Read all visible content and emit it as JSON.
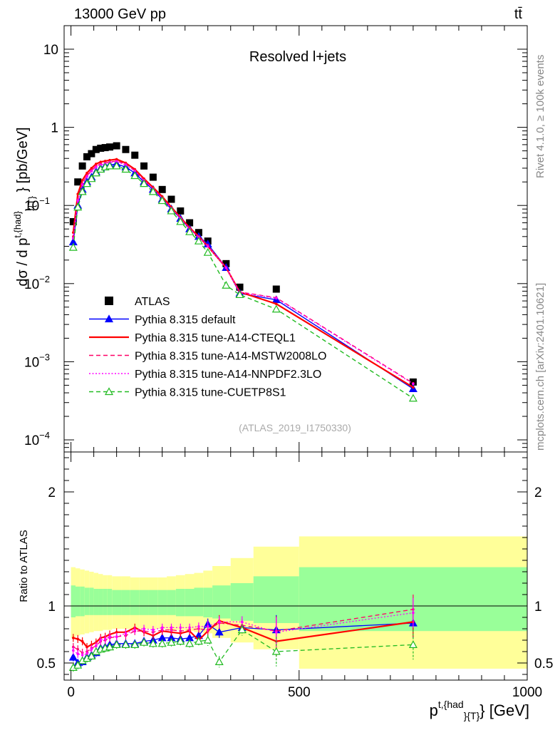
{
  "header": {
    "left": "13000 GeV pp",
    "right": "tt̄",
    "side_top": "Rivet 4.1.0, ≥ 100k events",
    "side_bottom": "mcplots.cern.ch [arXiv:2401.10621]"
  },
  "chart_data": [
    {
      "type": "scatter",
      "panel": "main",
      "title": "Resolved l+jets",
      "watermark": "(ATLAS_2019_I1750330)",
      "xlabel": "p^{t,{had}}_{T} [GeV]",
      "ylabel": "dσ / d p^{t,{had}}_{T} [pb/GeV]",
      "yscale": "log",
      "xlim": [
        -15,
        1000
      ],
      "ylim": [
        7e-05,
        20
      ],
      "y_ticks": [
        "10",
        "1",
        "10^-1",
        "10^-2",
        "10^-3",
        "10^-4"
      ],
      "legend_position": "lower-left",
      "x": [
        5,
        15,
        25,
        35,
        45,
        55,
        65,
        75,
        85,
        100,
        120,
        140,
        160,
        180,
        200,
        220,
        240,
        260,
        280,
        300,
        340,
        370,
        450,
        750
      ],
      "series": [
        {
          "name": "ATLAS",
          "color": "#000000",
          "style": "square",
          "values": [
            0.062,
            0.2,
            0.32,
            0.42,
            0.46,
            0.52,
            0.54,
            0.55,
            0.56,
            0.58,
            0.52,
            0.44,
            0.32,
            0.23,
            0.16,
            0.12,
            0.085,
            0.06,
            0.045,
            0.035,
            0.018,
            0.009,
            0.0085,
            0.00055
          ]
        },
        {
          "name": "Pythia 8.315 default",
          "color": "#0000ff",
          "style": "solid-triangle",
          "values": [
            0.034,
            0.1,
            0.16,
            0.2,
            0.23,
            0.27,
            0.3,
            0.32,
            0.33,
            0.34,
            0.31,
            0.26,
            0.2,
            0.16,
            0.12,
            0.09,
            0.068,
            0.05,
            0.04,
            0.032,
            0.016,
            0.0075,
            0.0062,
            0.00045
          ]
        },
        {
          "name": "Pythia 8.315 tune-A14-CTEQL1",
          "color": "#ff0000",
          "style": "solid",
          "values": [
            0.045,
            0.14,
            0.21,
            0.26,
            0.3,
            0.34,
            0.36,
            0.37,
            0.38,
            0.39,
            0.35,
            0.29,
            0.22,
            0.17,
            0.13,
            0.095,
            0.07,
            0.052,
            0.04,
            0.03,
            0.016,
            0.0078,
            0.0055,
            0.00047
          ]
        },
        {
          "name": "Pythia 8.315 tune-A14-MSTW2008LO",
          "color": "#ff0066",
          "style": "dashed",
          "values": [
            0.04,
            0.12,
            0.19,
            0.24,
            0.28,
            0.32,
            0.34,
            0.35,
            0.36,
            0.37,
            0.34,
            0.28,
            0.21,
            0.165,
            0.125,
            0.093,
            0.069,
            0.051,
            0.04,
            0.031,
            0.016,
            0.0078,
            0.0066,
            0.00053
          ]
        },
        {
          "name": "Pythia 8.315 tune-A14-NNPDF2.3LO",
          "color": "#ff00ff",
          "style": "dotted",
          "values": [
            0.038,
            0.115,
            0.185,
            0.235,
            0.275,
            0.31,
            0.33,
            0.345,
            0.355,
            0.365,
            0.33,
            0.275,
            0.21,
            0.163,
            0.123,
            0.092,
            0.068,
            0.05,
            0.039,
            0.03,
            0.016,
            0.0077,
            0.0065,
            0.00052
          ]
        },
        {
          "name": "Pythia 8.315 tune-CUETP8S1",
          "color": "#22bb22",
          "style": "dashed-open-triangle",
          "values": [
            0.029,
            0.095,
            0.15,
            0.19,
            0.22,
            0.26,
            0.29,
            0.31,
            0.32,
            0.32,
            0.29,
            0.24,
            0.19,
            0.15,
            0.115,
            0.085,
            0.062,
            0.046,
            0.035,
            0.025,
            0.0095,
            0.0072,
            0.0047,
            0.00034
          ]
        }
      ]
    },
    {
      "type": "line",
      "panel": "ratio",
      "ylabel": "Ratio to ATLAS",
      "xlabel": "p^{t,{had}}_{T} [GeV]",
      "xlim": [
        -15,
        1000
      ],
      "ylim": [
        0.35,
        2.35
      ],
      "y_ticks": [
        "0.5",
        "1",
        "2"
      ],
      "x_ticks": [
        "0",
        "500",
        "1000"
      ],
      "bands": {
        "edges": [
          0,
          10,
          20,
          30,
          40,
          50,
          60,
          70,
          80,
          90,
          110,
          130,
          150,
          170,
          190,
          210,
          230,
          250,
          270,
          290,
          310,
          350,
          400,
          500,
          1000
        ],
        "inner_color": "#99ff99",
        "outer_color": "#ffff99",
        "inner": [
          [
            0.9,
            1.18
          ],
          [
            0.91,
            1.17
          ],
          [
            0.91,
            1.17
          ],
          [
            0.92,
            1.16
          ],
          [
            0.92,
            1.16
          ],
          [
            0.92,
            1.15
          ],
          [
            0.92,
            1.15
          ],
          [
            0.92,
            1.15
          ],
          [
            0.92,
            1.15
          ],
          [
            0.92,
            1.14
          ],
          [
            0.92,
            1.14
          ],
          [
            0.92,
            1.14
          ],
          [
            0.92,
            1.14
          ],
          [
            0.92,
            1.14
          ],
          [
            0.92,
            1.14
          ],
          [
            0.92,
            1.14
          ],
          [
            0.91,
            1.15
          ],
          [
            0.91,
            1.15
          ],
          [
            0.91,
            1.16
          ],
          [
            0.9,
            1.16
          ],
          [
            0.89,
            1.18
          ],
          [
            0.87,
            1.2
          ],
          [
            0.85,
            1.26
          ],
          [
            0.78,
            1.34
          ]
        ],
        "outer": [
          [
            0.72,
            1.34
          ],
          [
            0.74,
            1.33
          ],
          [
            0.75,
            1.32
          ],
          [
            0.76,
            1.31
          ],
          [
            0.77,
            1.3
          ],
          [
            0.78,
            1.29
          ],
          [
            0.78,
            1.28
          ],
          [
            0.79,
            1.27
          ],
          [
            0.79,
            1.27
          ],
          [
            0.8,
            1.26
          ],
          [
            0.8,
            1.26
          ],
          [
            0.8,
            1.25
          ],
          [
            0.8,
            1.25
          ],
          [
            0.8,
            1.25
          ],
          [
            0.8,
            1.25
          ],
          [
            0.79,
            1.26
          ],
          [
            0.79,
            1.27
          ],
          [
            0.78,
            1.28
          ],
          [
            0.77,
            1.29
          ],
          [
            0.76,
            1.31
          ],
          [
            0.72,
            1.35
          ],
          [
            0.68,
            1.42
          ],
          [
            0.62,
            1.52
          ],
          [
            0.45,
            1.61
          ]
        ]
      },
      "x": [
        5,
        15,
        25,
        35,
        45,
        55,
        65,
        75,
        85,
        100,
        120,
        140,
        160,
        180,
        200,
        220,
        240,
        260,
        280,
        300,
        325,
        375,
        450,
        750
      ],
      "series": [
        {
          "name": "Pythia 8.315 default",
          "color": "#0000ff",
          "values": [
            0.55,
            0.5,
            0.51,
            0.55,
            0.57,
            0.59,
            0.63,
            0.64,
            0.66,
            0.67,
            0.67,
            0.67,
            0.69,
            0.7,
            0.72,
            0.72,
            0.71,
            0.72,
            0.74,
            0.84,
            0.77,
            0.81,
            0.79,
            0.85
          ]
        },
        {
          "name": "Pythia 8.315 tune-A14-CTEQL1",
          "color": "#ff0000",
          "values": [
            0.72,
            0.71,
            0.69,
            0.64,
            0.66,
            0.68,
            0.72,
            0.73,
            0.75,
            0.77,
            0.77,
            0.81,
            0.77,
            0.74,
            0.78,
            0.77,
            0.76,
            0.78,
            0.7,
            0.78,
            0.87,
            0.81,
            0.69,
            0.86
          ]
        },
        {
          "name": "Pythia 8.315 tune-A14-MSTW2008LO",
          "color": "#ff0066",
          "values": [
            0.64,
            0.62,
            0.59,
            0.6,
            0.63,
            0.65,
            0.69,
            0.7,
            0.72,
            0.73,
            0.74,
            0.78,
            0.78,
            0.77,
            0.79,
            0.79,
            0.78,
            0.79,
            0.8,
            0.79,
            0.85,
            0.83,
            0.78,
            0.97
          ]
        },
        {
          "name": "Pythia 8.315 tune-A14-NNPDF2.3LO",
          "color": "#ff00ff",
          "values": [
            0.61,
            0.58,
            0.57,
            0.58,
            0.62,
            0.65,
            0.7,
            0.71,
            0.73,
            0.73,
            0.76,
            0.79,
            0.8,
            0.79,
            0.81,
            0.81,
            0.81,
            0.81,
            0.82,
            0.82,
            0.86,
            0.86,
            0.77,
            0.94
          ]
        },
        {
          "name": "Pythia 8.315 tune-CUETP8S1",
          "color": "#22bb22",
          "values": [
            0.46,
            0.48,
            0.52,
            0.54,
            0.56,
            0.6,
            0.62,
            0.63,
            0.64,
            0.66,
            0.66,
            0.66,
            0.68,
            0.67,
            0.67,
            0.68,
            0.69,
            0.67,
            0.69,
            0.7,
            0.51,
            0.79,
            0.6,
            0.66
          ]
        }
      ]
    }
  ]
}
